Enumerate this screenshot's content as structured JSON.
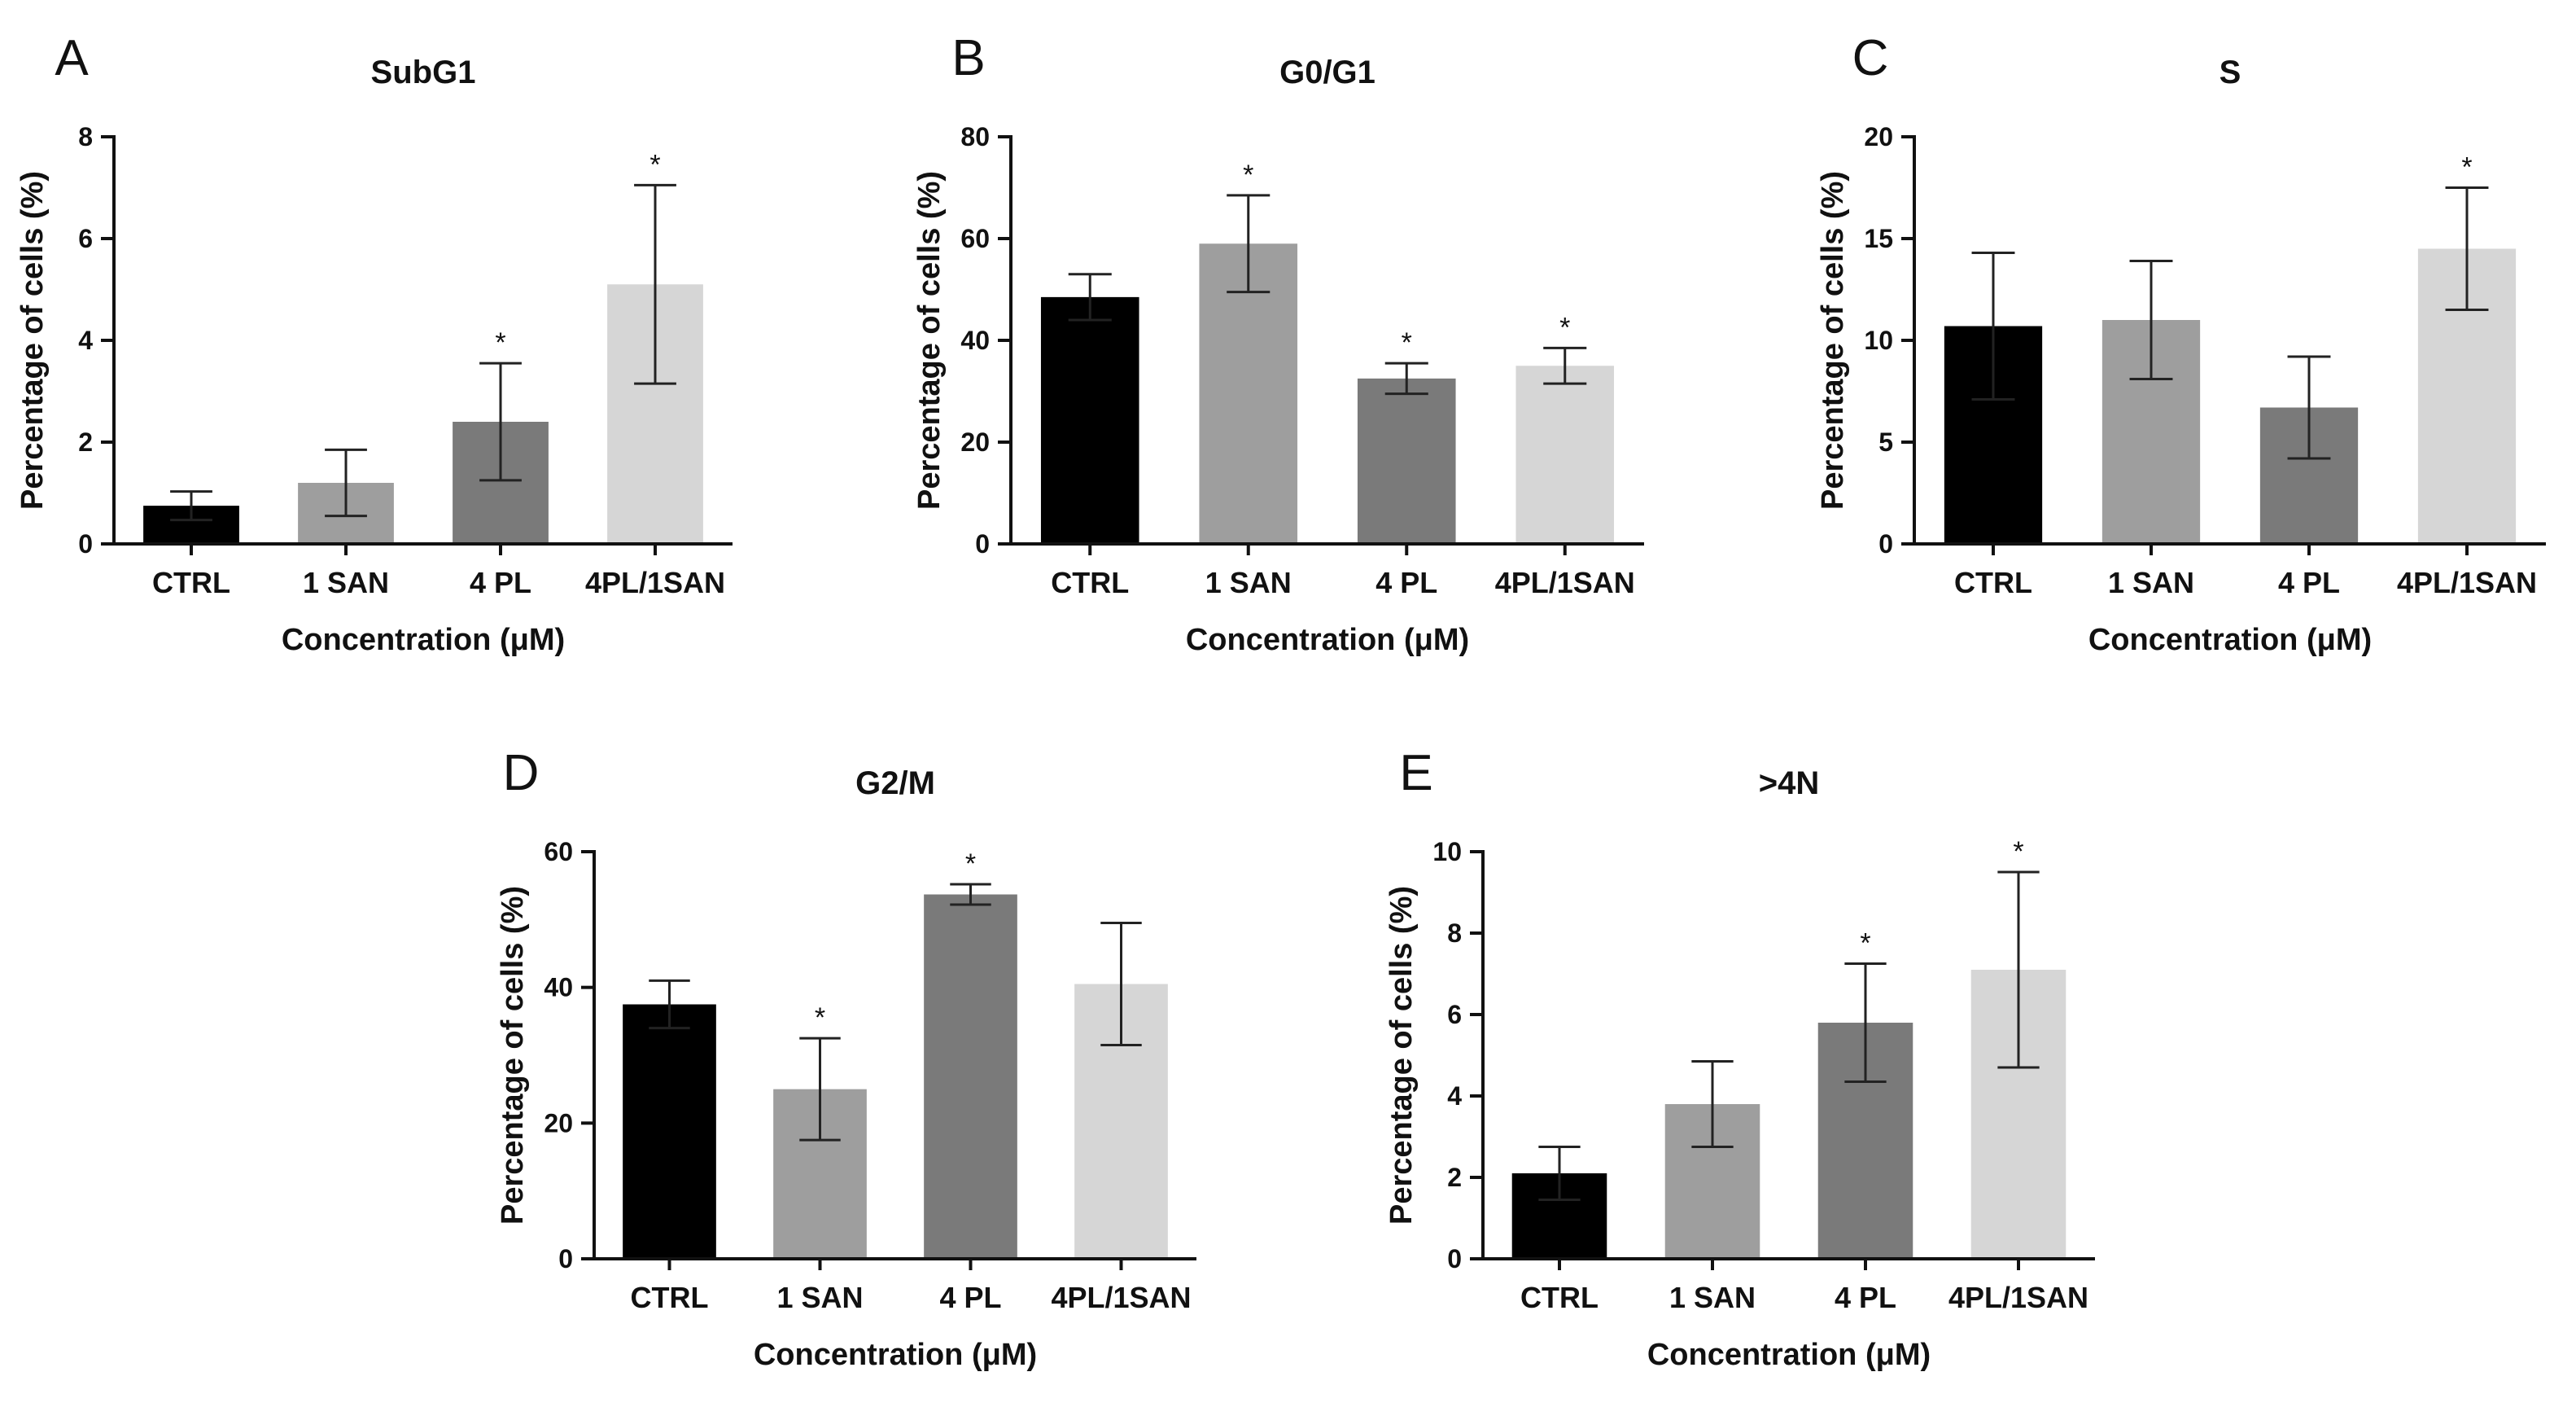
{
  "figure": {
    "panel_count": 5
  },
  "chart_data": [
    {
      "type": "bar",
      "panel": "A",
      "title": "SubG1",
      "xlabel": "Concentration (μM)",
      "ylabel": "Percentage of cells (%)",
      "categories": [
        "CTRL",
        "1 SAN",
        "4 PL",
        "4PL/1SAN"
      ],
      "values": [
        0.75,
        1.2,
        2.4,
        5.1
      ],
      "errors": [
        0.28,
        0.65,
        1.15,
        1.95
      ],
      "significance": [
        "",
        "",
        "*",
        "*"
      ],
      "colors": [
        "#000000",
        "#9e9e9e",
        "#7a7a7a",
        "#d6d6d6"
      ],
      "ylim": [
        0,
        8
      ],
      "yticks": [
        0,
        2,
        4,
        6,
        8
      ]
    },
    {
      "type": "bar",
      "panel": "B",
      "title": "G0/G1",
      "xlabel": "Concentration (μM)",
      "ylabel": "Percentage of cells (%)",
      "categories": [
        "CTRL",
        "1 SAN",
        "4 PL",
        "4PL/1SAN"
      ],
      "values": [
        48.5,
        59,
        32.5,
        35
      ],
      "errors": [
        4.5,
        9.5,
        3.0,
        3.5
      ],
      "significance": [
        "",
        "*",
        "*",
        "*"
      ],
      "colors": [
        "#000000",
        "#9e9e9e",
        "#7a7a7a",
        "#d6d6d6"
      ],
      "ylim": [
        0,
        80
      ],
      "yticks": [
        0,
        20,
        40,
        60,
        80
      ]
    },
    {
      "type": "bar",
      "panel": "C",
      "title": "S",
      "xlabel": "Concentration (μM)",
      "ylabel": "Percentage of cells (%)",
      "categories": [
        "CTRL",
        "1 SAN",
        "4 PL",
        "4PL/1SAN"
      ],
      "values": [
        10.7,
        11.0,
        6.7,
        14.5
      ],
      "errors": [
        3.6,
        2.9,
        2.5,
        3.0
      ],
      "significance": [
        "",
        "",
        "",
        "*"
      ],
      "colors": [
        "#000000",
        "#9e9e9e",
        "#7a7a7a",
        "#d6d6d6"
      ],
      "ylim": [
        0,
        20
      ],
      "yticks": [
        0,
        5,
        10,
        15,
        20
      ]
    },
    {
      "type": "bar",
      "panel": "D",
      "title": "G2/M",
      "xlabel": "Concentration (μM)",
      "ylabel": "Percentage of cells (%)",
      "categories": [
        "CTRL",
        "1 SAN",
        "4 PL",
        "4PL/1SAN"
      ],
      "values": [
        37.5,
        25,
        53.7,
        40.5
      ],
      "errors": [
        3.5,
        7.5,
        1.5,
        9.0
      ],
      "significance": [
        "",
        "*",
        "*",
        ""
      ],
      "colors": [
        "#000000",
        "#9e9e9e",
        "#7a7a7a",
        "#d6d6d6"
      ],
      "ylim": [
        0,
        60
      ],
      "yticks": [
        0,
        20,
        40,
        60
      ]
    },
    {
      "type": "bar",
      "panel": "E",
      "title": ">4N",
      "xlabel": "Concentration (μM)",
      "ylabel": "Percentage of cells (%)",
      "categories": [
        "CTRL",
        "1 SAN",
        "4 PL",
        "4PL/1SAN"
      ],
      "values": [
        2.1,
        3.8,
        5.8,
        7.1
      ],
      "errors": [
        0.65,
        1.05,
        1.45,
        2.4
      ],
      "significance": [
        "",
        "",
        "*",
        "*"
      ],
      "colors": [
        "#000000",
        "#9e9e9e",
        "#7a7a7a",
        "#d6d6d6"
      ],
      "ylim": [
        0,
        10
      ],
      "yticks": [
        0,
        2,
        4,
        6,
        8,
        10
      ]
    }
  ]
}
